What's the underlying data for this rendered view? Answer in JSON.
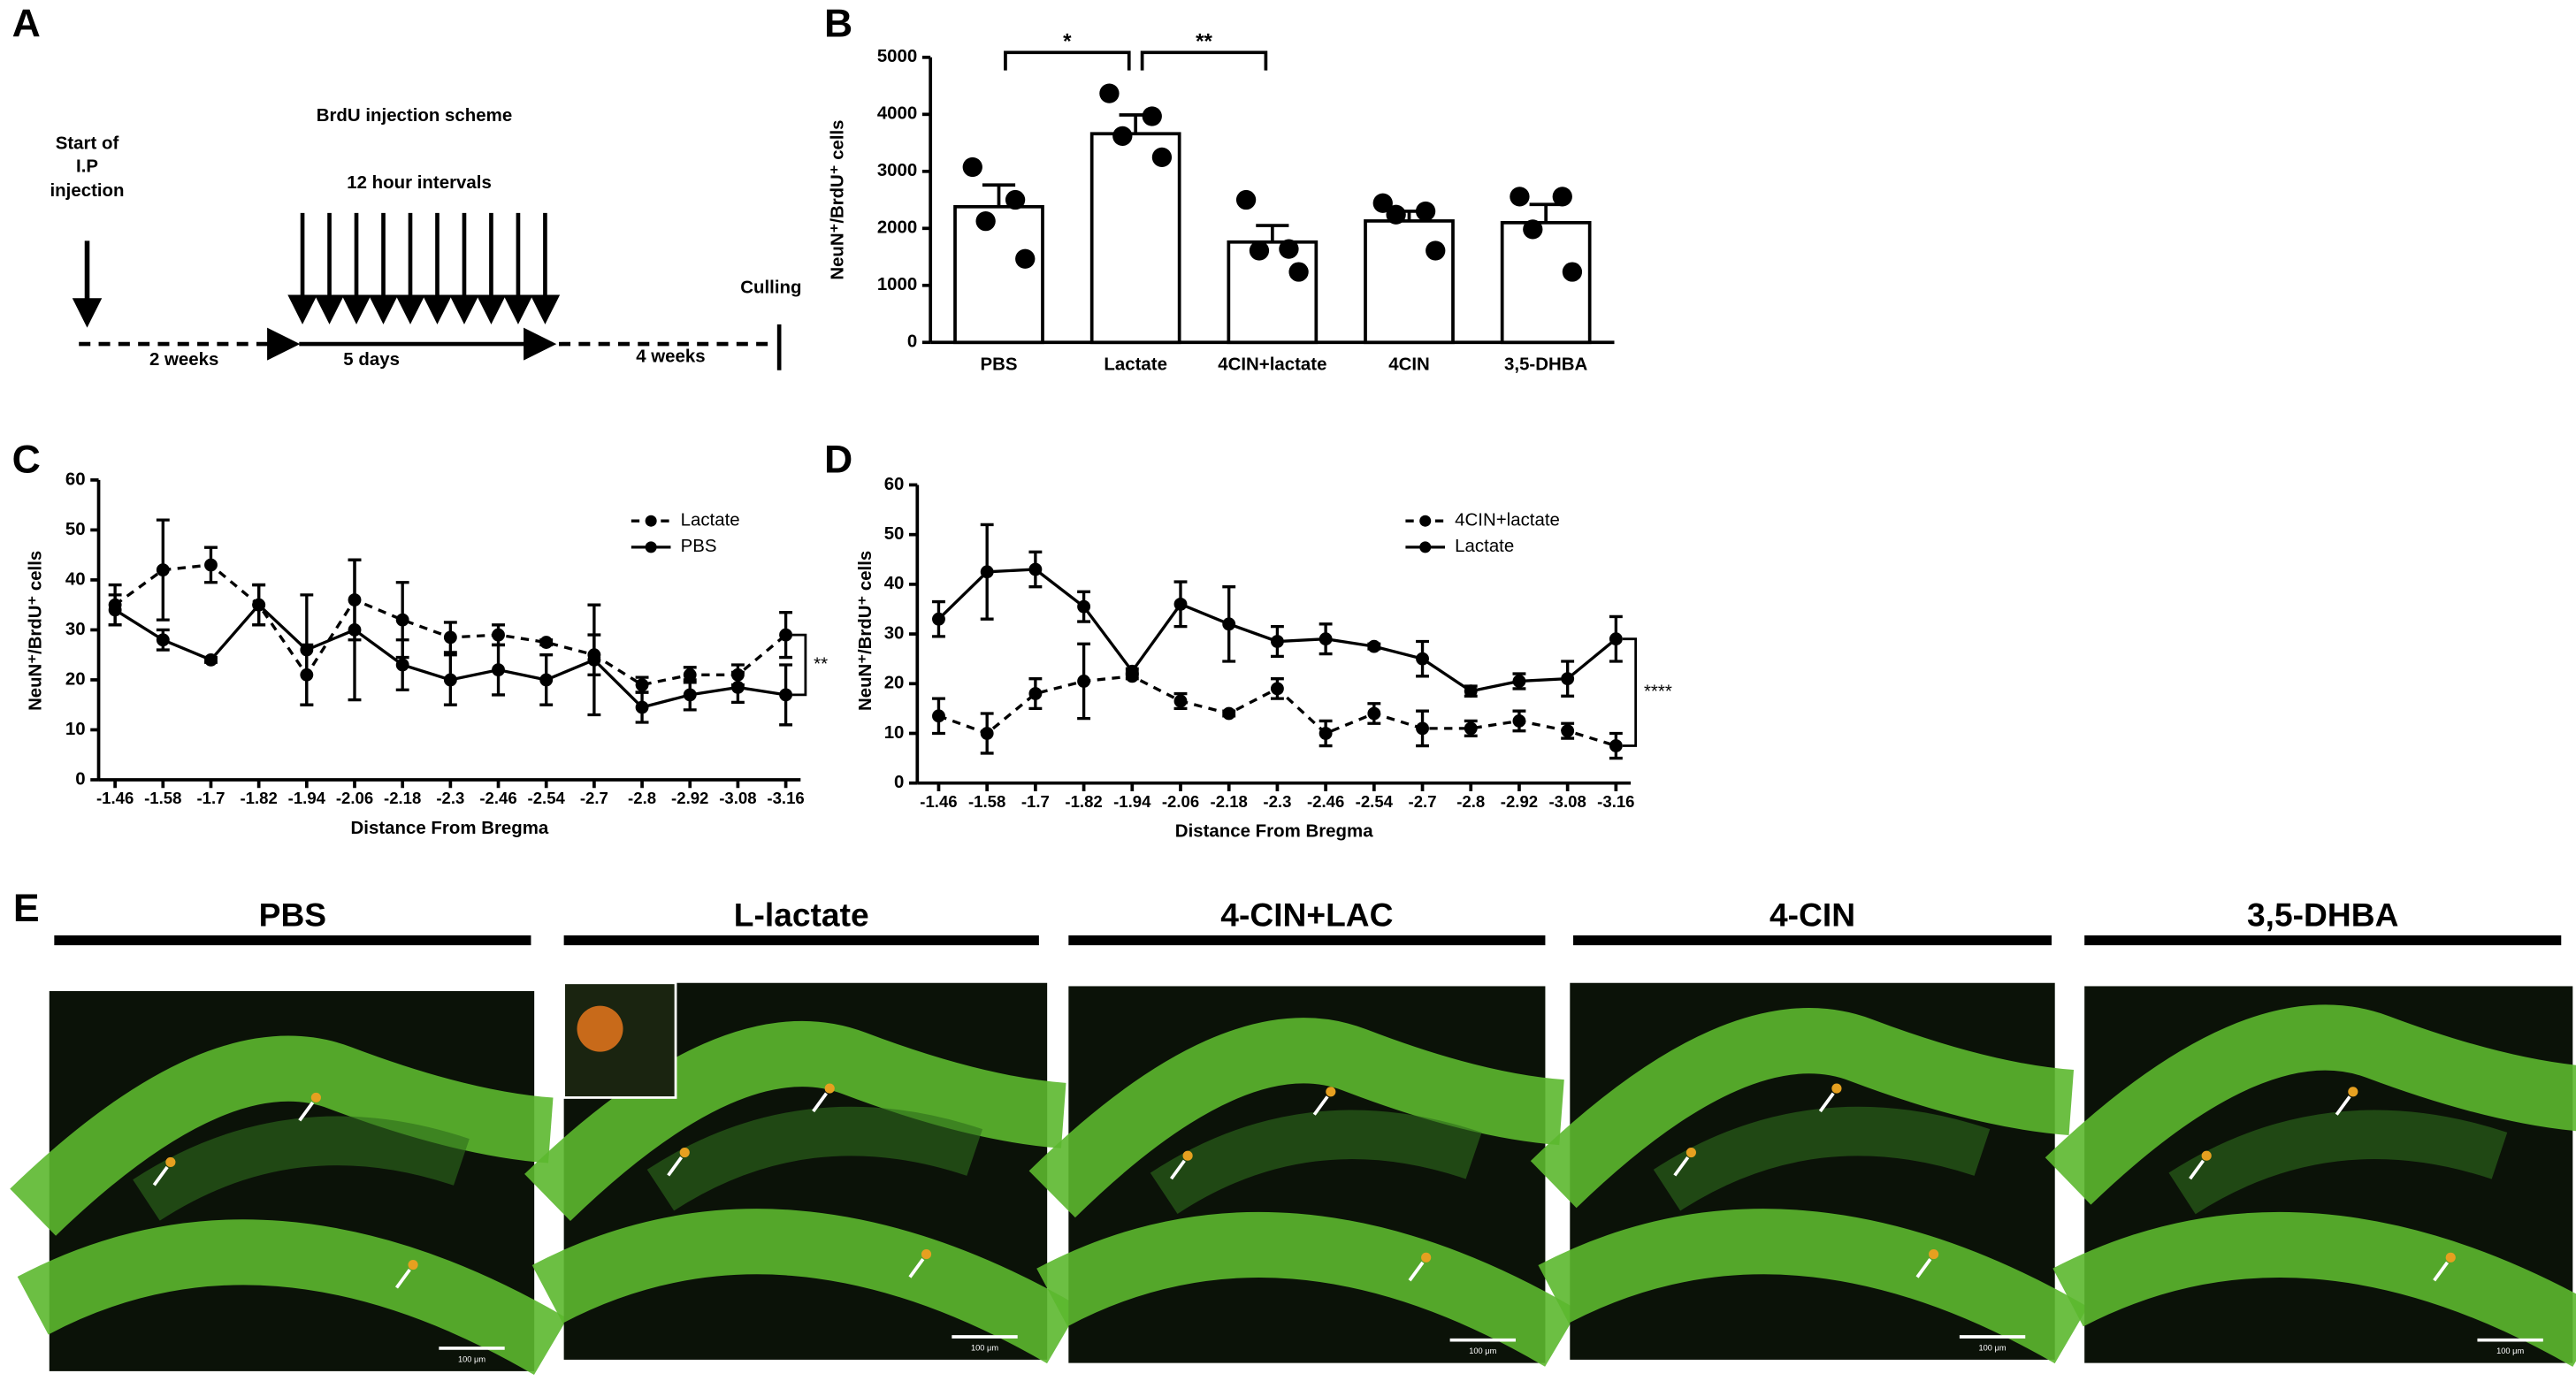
{
  "panel_labels": [
    "A",
    "B",
    "C",
    "D",
    "E"
  ],
  "diagram": {
    "start": [
      "Start of",
      "I.P",
      "injection"
    ],
    "scheme": "BrdU injection scheme",
    "interval": "12 hour intervals",
    "end": "Culling",
    "phases": [
      "2 weeks",
      "5 days",
      "4 weeks"
    ]
  },
  "chart_data": [
    {
      "type": "bar",
      "y_label": "NeuN⁺/BrdU⁺ cells",
      "categories": [
        "PBS",
        "Lactate",
        "4CIN+lactate",
        "4CIN",
        "3,5-DHBA"
      ],
      "values": [
        2380,
        3660,
        1760,
        2130,
        2100
      ],
      "errors": [
        380,
        330,
        290,
        170,
        320
      ],
      "points": [
        [
          3075,
          2500,
          2126,
          1466
        ],
        [
          4368,
          3966,
          3620,
          3247
        ],
        [
          2500,
          1638,
          1609,
          1236
        ],
        [
          2443,
          2299,
          2241,
          1609
        ],
        [
          2557,
          2557,
          1983,
          1236
        ]
      ],
      "color": "#ffffff",
      "ylim": [
        0,
        5000
      ],
      "yticks": [
        0,
        1000,
        2000,
        3000,
        4000,
        5000
      ],
      "significance": [
        {
          "between": [
            "PBS",
            "Lactate"
          ],
          "label": "*"
        },
        {
          "between": [
            "Lactate",
            "4CIN+lactate"
          ],
          "label": "**"
        }
      ]
    },
    {
      "type": "line",
      "x_label": "Distance From Bregma",
      "y_label": "NeuN⁺/BrdU⁺ cells",
      "categories": [
        "-1.46",
        "-1.58",
        "-1.7",
        "-1.82",
        "-1.94",
        "-2.06",
        "-2.18",
        "-2.3",
        "-2.46",
        "-2.54",
        "-2.7",
        "-2.8",
        "-2.92",
        "-3.08",
        "-3.16"
      ],
      "series": [
        {
          "name": "Lactate",
          "color": "#000000",
          "dash": "dashed",
          "values": [
            35,
            42,
            43,
            35,
            21,
            36,
            32,
            28.5,
            29,
            27.5,
            25,
            19,
            21,
            21,
            29
          ],
          "errors": [
            4,
            10,
            3.5,
            4,
            6,
            8,
            7.5,
            3,
            2,
            0.5,
            4,
            1.5,
            1.5,
            2,
            4.5
          ]
        },
        {
          "name": "PBS",
          "color": "#000000",
          "dash": "solid",
          "values": [
            34,
            28,
            24,
            35,
            26,
            30,
            23,
            20,
            22,
            20,
            24,
            14.5,
            17,
            18.5,
            17
          ],
          "errors": [
            3,
            2,
            0.5,
            4,
            11,
            14,
            5,
            5,
            5,
            5,
            11,
            3,
            3,
            3,
            6
          ]
        }
      ],
      "ylim": [
        0,
        60
      ],
      "yticks": [
        0,
        10,
        20,
        30,
        40,
        50,
        60
      ],
      "legend": "top-right",
      "significance": "**"
    },
    {
      "type": "line",
      "x_label": "Distance From Bregma",
      "y_label": "NeuN⁺/BrdU⁺ cells",
      "categories": [
        "-1.46",
        "-1.58",
        "-1.7",
        "-1.82",
        "-1.94",
        "-2.06",
        "-2.18",
        "-2.3",
        "-2.46",
        "-2.54",
        "-2.7",
        "-2.8",
        "-2.92",
        "-3.08",
        "-3.16"
      ],
      "series": [
        {
          "name": "4CIN+lactate",
          "color": "#000000",
          "dash": "dashed",
          "values": [
            13.5,
            10,
            18,
            20.5,
            21.5,
            16.5,
            14,
            19,
            10,
            14,
            11,
            11,
            12.5,
            10.5,
            7.5
          ],
          "errors": [
            3.5,
            4,
            3,
            7.5,
            0.5,
            1.5,
            0.5,
            2,
            2.5,
            2,
            3.5,
            1.5,
            2,
            1.5,
            2.5
          ]
        },
        {
          "name": "Lactate",
          "color": "#000000",
          "dash": "solid",
          "values": [
            33,
            42.5,
            43,
            35.5,
            22.5,
            36,
            32,
            28.5,
            29,
            27.5,
            25,
            18.5,
            20.5,
            21,
            29
          ],
          "errors": [
            3.5,
            9.5,
            3.5,
            3,
            0.5,
            4.5,
            7.5,
            3,
            3,
            0.5,
            3.5,
            1,
            1.5,
            3.5,
            4.5
          ]
        }
      ],
      "ylim": [
        0,
        60
      ],
      "yticks": [
        0,
        10,
        20,
        30,
        40,
        50,
        60
      ],
      "legend": "top-right",
      "significance": "****"
    }
  ],
  "images": {
    "titles": [
      "PBS",
      "L-lactate",
      "4-CIN+LAC",
      "4-CIN",
      "3,5-DHBA"
    ],
    "scale_bar": "100 μm"
  }
}
